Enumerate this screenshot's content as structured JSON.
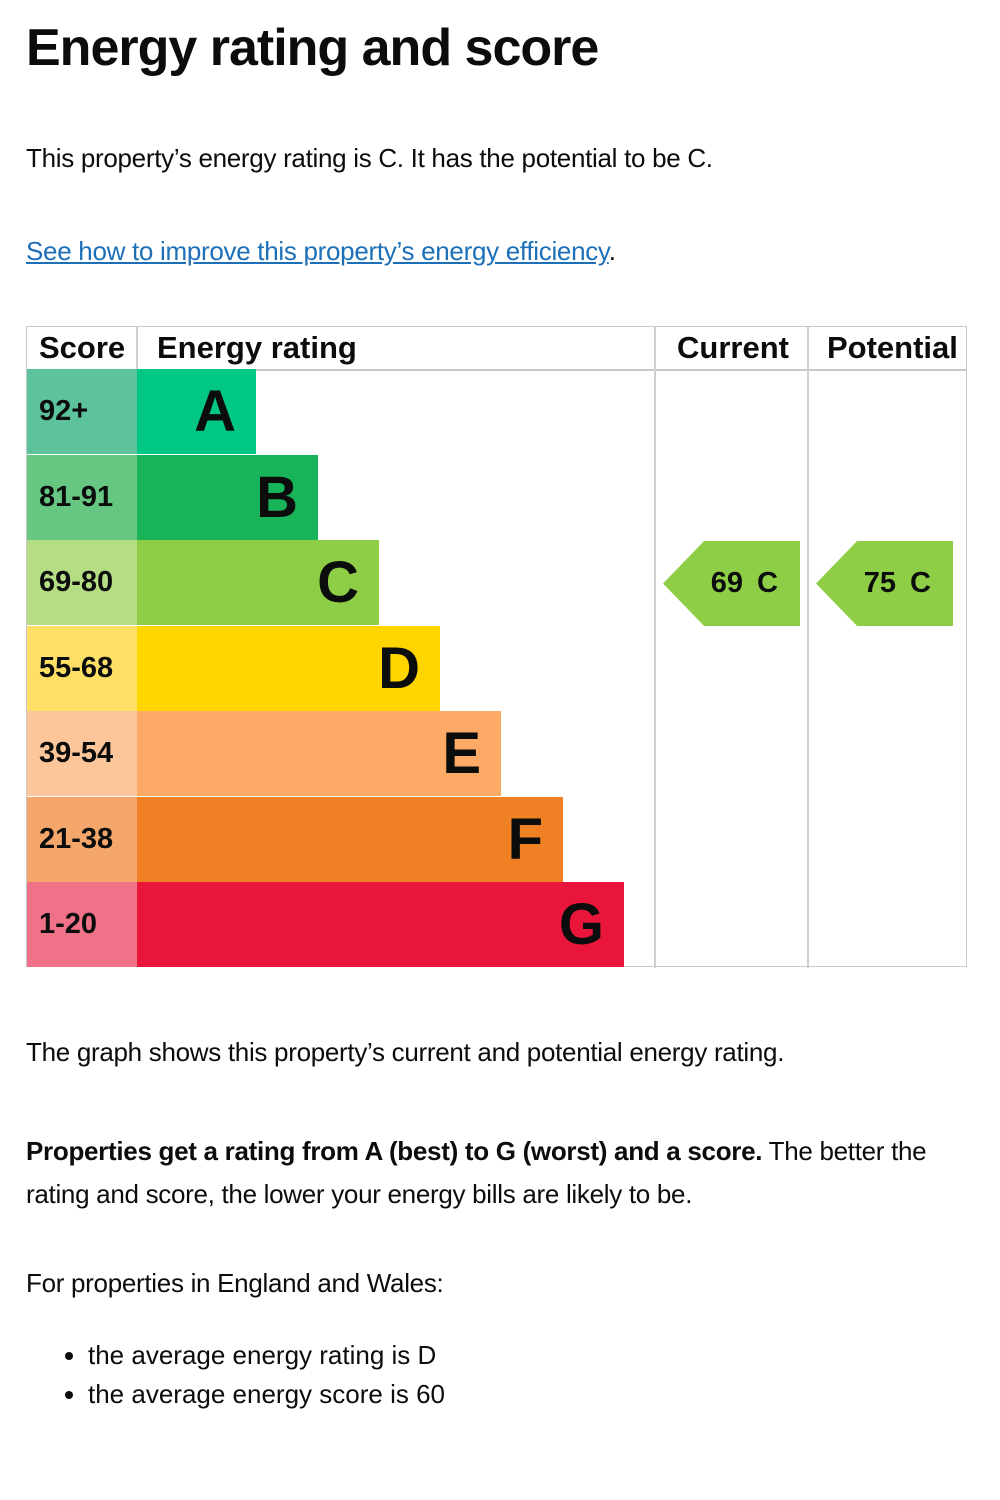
{
  "title": "Energy rating and score",
  "intro": "This property’s energy rating is C. It has the potential to be C.",
  "link_text": "See how to improve this property’s energy efficiency",
  "link_suffix": ".",
  "chart_data": {
    "type": "table",
    "headers": [
      "Score",
      "Energy rating",
      "Current",
      "Potential"
    ],
    "bands": [
      {
        "score": "92+",
        "rating": "A",
        "color": "#00c781",
        "score_color": "#5cc39c"
      },
      {
        "score": "81-91",
        "rating": "B",
        "color": "#19b459",
        "score_color": "#66c782"
      },
      {
        "score": "69-80",
        "rating": "C",
        "color": "#8dce46",
        "score_color": "#b4dd84"
      },
      {
        "score": "55-68",
        "rating": "D",
        "color": "#ffd500",
        "score_color": "#ffe066"
      },
      {
        "score": "39-54",
        "rating": "E",
        "color": "#fcaa65",
        "score_color": "#fdc59a"
      },
      {
        "score": "21-38",
        "rating": "F",
        "color": "#ef8023",
        "score_color": "#f4a66b"
      },
      {
        "score": "1-20",
        "rating": "G",
        "color": "#e9153b",
        "score_color": "#f07288"
      }
    ],
    "current": {
      "label": "69 C",
      "score": 69,
      "rating": "C"
    },
    "potential": {
      "label": "75 C",
      "score": 75,
      "rating": "C"
    }
  },
  "graph_text": "The graph shows this property’s current and potential energy rating.",
  "ratings_bold": "Properties get a rating from A (best) to G (worst) and a score.",
  "ratings_rest": " The better the rating and score, the lower your energy bills are likely to be.",
  "region_text": "For properties in England and Wales:",
  "bullets": [
    "the average energy rating is D",
    "the average energy score is 60"
  ]
}
